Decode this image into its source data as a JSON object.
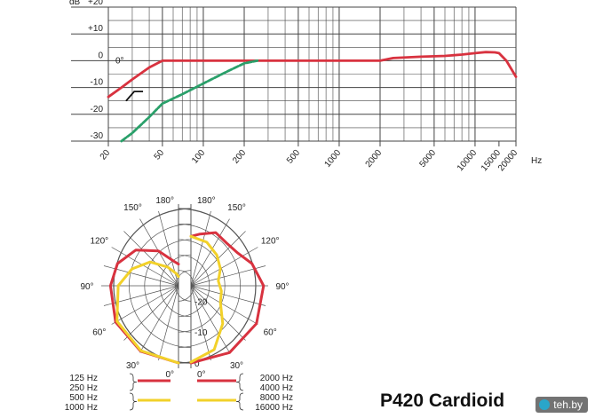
{
  "chart_data": [
    {
      "type": "line",
      "title": "",
      "xscale": "log",
      "xlim": [
        20,
        20000
      ],
      "ylim": [
        -30,
        20
      ],
      "ylabel": "dB",
      "xunit": "Hz",
      "y_ticks": [
        "+20",
        "+10",
        "0",
        "-10",
        "-20",
        "-30"
      ],
      "y_tick_values": [
        20,
        10,
        0,
        -10,
        -20,
        -30
      ],
      "x_ticks": [
        "20",
        "50",
        "100",
        "200",
        "500",
        "1000",
        "2000",
        "5000",
        "10000",
        "15000",
        "20000"
      ],
      "x_tick_values": [
        20,
        50,
        100,
        200,
        500,
        1000,
        2000,
        5000,
        10000,
        15000,
        20000
      ],
      "grid": true,
      "annotations": [
        "0°"
      ],
      "series": [
        {
          "color": "#d8323f",
          "points": [
            [
              20,
              -13.5
            ],
            [
              25,
              -10
            ],
            [
              30,
              -7
            ],
            [
              40,
              -2.5
            ],
            [
              50,
              0
            ],
            [
              60,
              0
            ],
            [
              80,
              0
            ],
            [
              100,
              0
            ],
            [
              200,
              0
            ],
            [
              500,
              0
            ],
            [
              1000,
              0
            ],
            [
              2000,
              0
            ],
            [
              2500,
              1
            ],
            [
              4000,
              1.5
            ],
            [
              6000,
              1.8
            ],
            [
              8000,
              2.3
            ],
            [
              10000,
              2.8
            ],
            [
              12000,
              3.2
            ],
            [
              14000,
              3.1
            ],
            [
              15000,
              2.8
            ],
            [
              17000,
              0
            ],
            [
              20000,
              -6
            ]
          ]
        },
        {
          "color": "#2aa06a",
          "points": [
            [
              25,
              -30
            ],
            [
              30,
              -27
            ],
            [
              40,
              -21
            ],
            [
              50,
              -16
            ],
            [
              70,
              -12.5
            ],
            [
              100,
              -8.5
            ],
            [
              150,
              -4
            ],
            [
              200,
              -1
            ],
            [
              250,
              0
            ]
          ]
        }
      ],
      "filter_switch_label": "",
      "filter_icon": "low-cut-filter-icon"
    },
    {
      "type": "polar",
      "angle_labels": [
        "180°",
        "150°",
        "120°",
        "90°",
        "60°",
        "30°",
        "0°"
      ],
      "angle_values": [
        180,
        150,
        120,
        90,
        60,
        30,
        0
      ],
      "radial_labels": [
        "-20",
        "-10",
        "0"
      ],
      "radial_values": [
        -20,
        -10,
        0
      ],
      "rlim": [
        -25,
        0
      ],
      "left": {
        "series": [
          {
            "color": "#d8323f",
            "points": [
              [
                0,
                0
              ],
              [
                30,
                -0.5
              ],
              [
                60,
                -1.5
              ],
              [
                90,
                -3
              ],
              [
                110,
                -4
              ],
              [
                130,
                -7
              ],
              [
                150,
                -12
              ],
              [
                170,
                -17
              ],
              [
                180,
                -18
              ]
            ]
          },
          {
            "color": "#f2d12a",
            "points": [
              [
                0,
                0
              ],
              [
                30,
                -0.7
              ],
              [
                60,
                -2
              ],
              [
                90,
                -5.5
              ],
              [
                110,
                -9
              ],
              [
                130,
                -13
              ],
              [
                150,
                -18
              ],
              [
                170,
                -21
              ],
              [
                180,
                -22
              ]
            ]
          }
        ]
      },
      "right": {
        "series": [
          {
            "color": "#d8323f",
            "points": [
              [
                0,
                0
              ],
              [
                30,
                0
              ],
              [
                60,
                -0.5
              ],
              [
                90,
                -1.5
              ],
              [
                110,
                -4
              ],
              [
                125,
                -6.5
              ],
              [
                140,
                -7
              ],
              [
                155,
                -6
              ],
              [
                170,
                -8
              ],
              [
                180,
                -9
              ]
            ]
          },
          {
            "color": "#f2d12a",
            "points": [
              [
                0,
                -0.3
              ],
              [
                20,
                -3
              ],
              [
                40,
                -9
              ],
              [
                60,
                -14
              ],
              [
                80,
                -15
              ],
              [
                100,
                -16
              ],
              [
                120,
                -14
              ],
              [
                140,
                -12
              ],
              [
                160,
                -10
              ],
              [
                180,
                -9
              ]
            ]
          }
        ]
      },
      "legend": [
        {
          "labels": [
            "125 Hz",
            "250 Hz"
          ],
          "color": "#d8323f",
          "side": "left"
        },
        {
          "labels": [
            "500 Hz",
            "1000 Hz"
          ],
          "color": "#f2d12a",
          "side": "left"
        },
        {
          "labels": [
            "2000 Hz",
            "4000 Hz"
          ],
          "color": "#d8323f",
          "side": "right"
        },
        {
          "labels": [
            "8000 Hz",
            "16000 Hz"
          ],
          "color": "#f2d12a",
          "side": "right"
        }
      ]
    }
  ],
  "model_title": "P420 Cardioid",
  "watermark": "teh.by"
}
